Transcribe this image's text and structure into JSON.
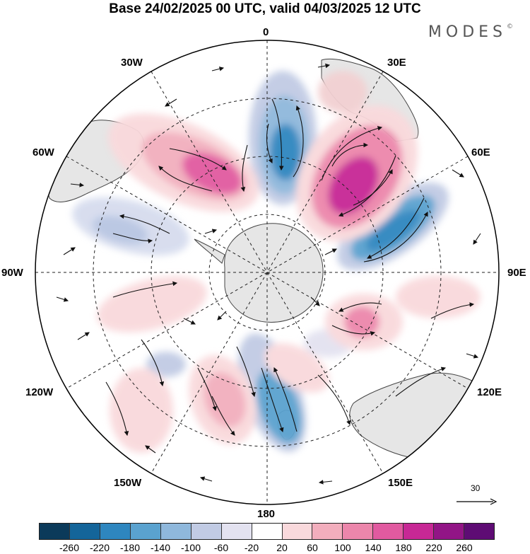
{
  "title": "Base 24/02/2025 00 UTC, valid 04/03/2025 12 UTC",
  "brand": "MODES",
  "brand_mark": "©",
  "longitude_labels": {
    "lon_0": "0",
    "lon_30e": "30E",
    "lon_60e": "60E",
    "lon_90e": "90E",
    "lon_120e": "120E",
    "lon_150e": "150E",
    "lon_180": "180",
    "lon_150w": "150W",
    "lon_120w": "120W",
    "lon_90w": "90W",
    "lon_60w": "60W",
    "lon_30w": "30W"
  },
  "reference_vector": {
    "value": "30"
  },
  "colorbar": {
    "colors": [
      "#0b3a5a",
      "#14659a",
      "#2e86bf",
      "#5aa2cf",
      "#8fb8dc",
      "#c1cbe4",
      "#e3e2f0",
      "#ffffff",
      "#f9d9dc",
      "#f2aebd",
      "#ec86ab",
      "#e15aa0",
      "#c72895",
      "#921586",
      "#5e0c74"
    ],
    "labels": [
      "-260",
      "-220",
      "-180",
      "-140",
      "-100",
      "-60",
      "-20",
      "20",
      "60",
      "100",
      "140",
      "180",
      "220",
      "260"
    ]
  }
}
